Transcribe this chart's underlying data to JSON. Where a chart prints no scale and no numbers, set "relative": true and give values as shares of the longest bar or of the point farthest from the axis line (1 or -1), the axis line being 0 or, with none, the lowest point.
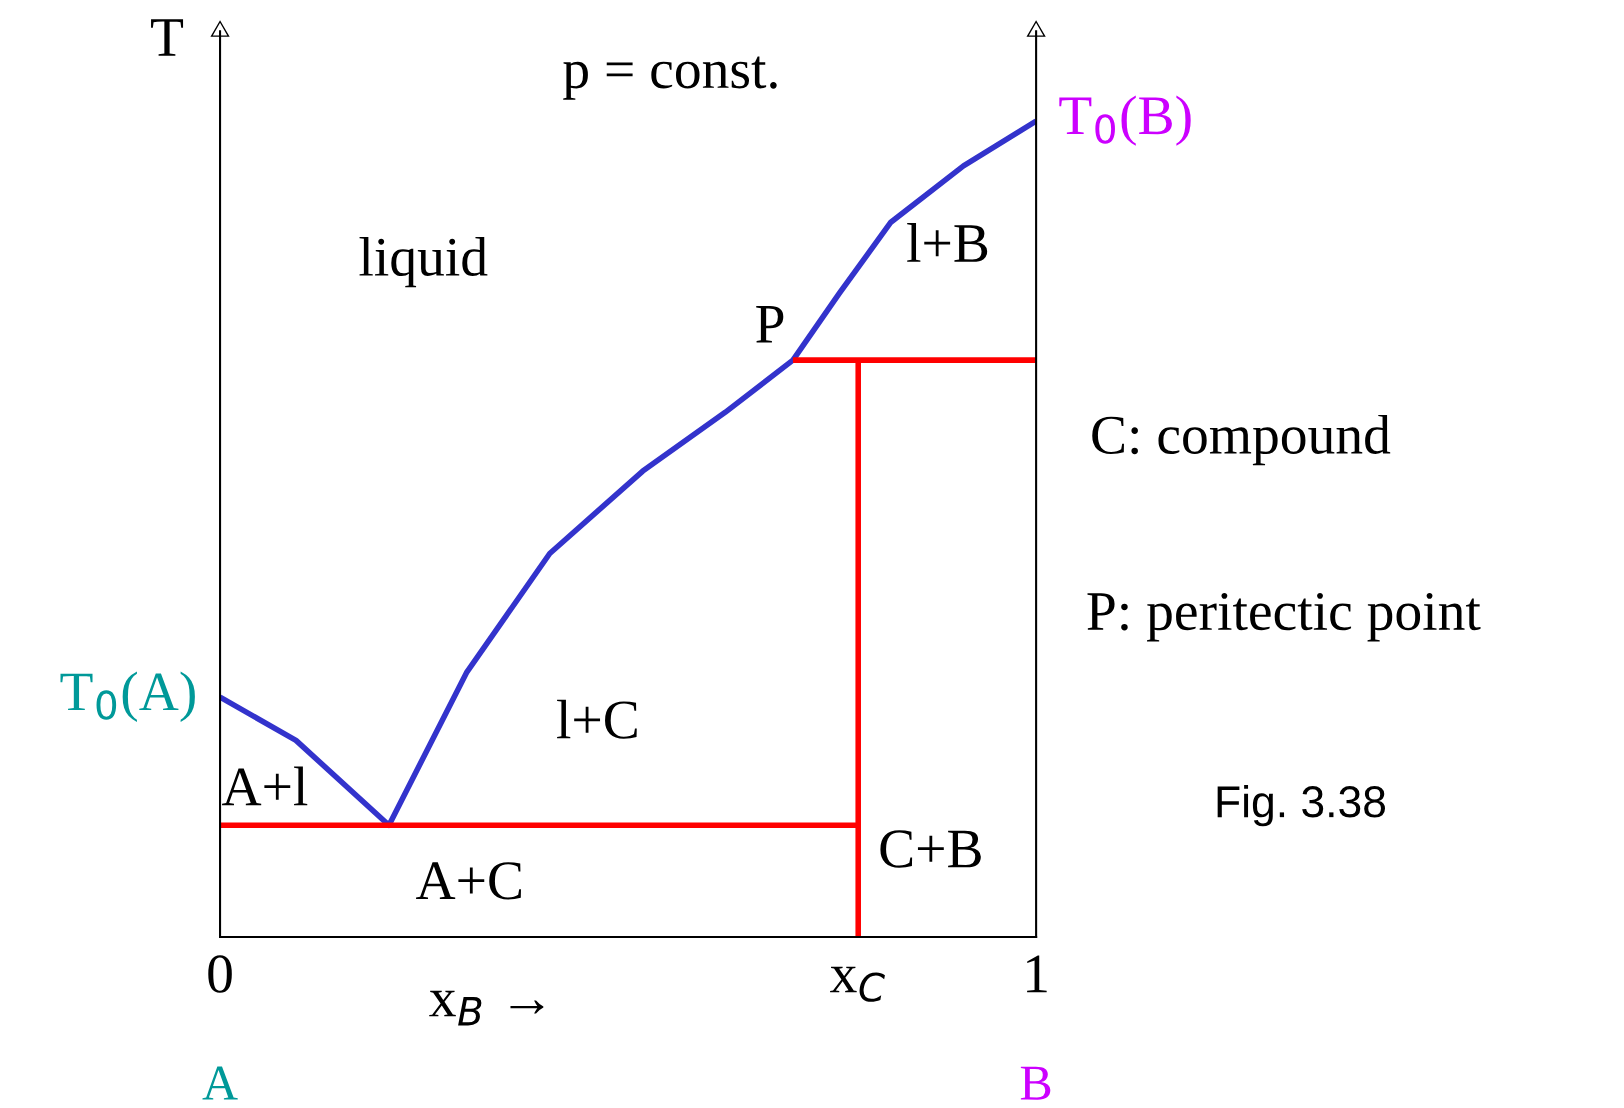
{
  "chart_data": {
    "type": "line",
    "relative": true,
    "ylabel": "T",
    "xlabel": "x$_{B}$ →",
    "xlim": [
      0,
      1
    ],
    "xticks": [
      0,
      {
        "value": 0.782,
        "label": "x$_{C}$"
      },
      1
    ],
    "series": [
      {
        "color": "#3333cc",
        "x": [
          0,
          0.093,
          0.207,
          0.302,
          0.404,
          0.518,
          0.619,
          0.702,
          0.759,
          0.822,
          0.911,
          1.0
        ],
        "values": [
          0.294,
          0.241,
          0.137,
          0.324,
          0.47,
          0.571,
          0.643,
          0.707,
          0.789,
          0.876,
          0.945,
          1.0
        ]
      },
      {
        "color": "#ff0000",
        "x": [
          0,
          0.782
        ],
        "values": [
          0.137,
          0.137
        ]
      },
      {
        "color": "#ff0000",
        "x": [
          0.702,
          1.0
        ],
        "values": [
          0.707,
          0.707
        ]
      },
      {
        "color": "#ff0000",
        "x": [
          0.782,
          0.782
        ],
        "values": [
          0,
          0.707
        ]
      }
    ],
    "annotations": [
      "p = const.",
      "liquid",
      "l+B",
      "P",
      "l+C",
      "A+l",
      "A+C",
      "C+B",
      {
        "text": "T$_{0}$(A)",
        "x": 0,
        "y": 0.294
      },
      {
        "text": "T$_{0}$(B)",
        "x": 1,
        "y": 1.0
      },
      "C: compound",
      "P: peritectic point",
      "Fig. 3.38",
      "A",
      "B"
    ],
    "grid": false,
    "legend": false,
    "marker": "none",
    "line_style": "solid"
  }
}
